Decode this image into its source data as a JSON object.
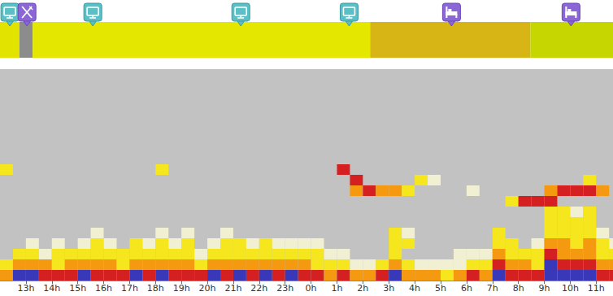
{
  "chart_data": {
    "type": "spectrogram",
    "xlim": [
      12,
      35.65
    ],
    "xticks": [
      {
        "value": 13,
        "label": "13h"
      },
      {
        "value": 14,
        "label": "14h"
      },
      {
        "value": 15,
        "label": "15h"
      },
      {
        "value": 16,
        "label": "16h"
      },
      {
        "value": 17,
        "label": "17h"
      },
      {
        "value": 18,
        "label": "18h"
      },
      {
        "value": 19,
        "label": "19h"
      },
      {
        "value": 20,
        "label": "20h"
      },
      {
        "value": 21,
        "label": "21h"
      },
      {
        "value": 22,
        "label": "22h"
      },
      {
        "value": 23,
        "label": "23h"
      },
      {
        "value": 24,
        "label": "0h"
      },
      {
        "value": 25,
        "label": "1h"
      },
      {
        "value": 26,
        "label": "2h"
      },
      {
        "value": 27,
        "label": "3h"
      },
      {
        "value": 28,
        "label": "4h"
      },
      {
        "value": 29,
        "label": "5h"
      },
      {
        "value": 30,
        "label": "6h"
      },
      {
        "value": 31,
        "label": "7h"
      },
      {
        "value": 32,
        "label": "8h"
      },
      {
        "value": 33,
        "label": "9h"
      },
      {
        "value": 34,
        "label": "10h"
      },
      {
        "value": 35,
        "label": "11h"
      }
    ],
    "ylim": [
      0,
      20
    ],
    "tick_labels": "x",
    "grid": false,
    "cell_width": 0.5,
    "cell_height": 1,
    "levels": [
      {
        "value": 1,
        "color": "#f2f0d2"
      },
      {
        "value": 2,
        "color": "#f5e61e"
      },
      {
        "value": 3,
        "color": "#f59a10"
      },
      {
        "value": 4,
        "color": "#d42020"
      },
      {
        "value": 5,
        "color": "#3838b8"
      }
    ],
    "cells": [
      [
        12.0,
        0,
        3
      ],
      [
        12.0,
        1,
        2
      ],
      [
        12.0,
        10,
        2
      ],
      [
        12.5,
        0,
        5
      ],
      [
        12.5,
        1,
        3
      ],
      [
        12.5,
        2,
        2
      ],
      [
        13.0,
        0,
        5
      ],
      [
        13.0,
        1,
        3
      ],
      [
        13.0,
        2,
        2
      ],
      [
        13.0,
        3,
        1
      ],
      [
        13.5,
        0,
        4
      ],
      [
        13.5,
        1,
        3
      ],
      [
        13.5,
        2,
        1
      ],
      [
        14.0,
        0,
        4
      ],
      [
        14.0,
        1,
        2
      ],
      [
        14.0,
        2,
        2
      ],
      [
        14.0,
        3,
        1
      ],
      [
        14.5,
        0,
        4
      ],
      [
        14.5,
        1,
        3
      ],
      [
        14.5,
        2,
        2
      ],
      [
        15.0,
        0,
        5
      ],
      [
        15.0,
        1,
        3
      ],
      [
        15.0,
        2,
        2
      ],
      [
        15.0,
        3,
        1
      ],
      [
        15.5,
        0,
        4
      ],
      [
        15.5,
        1,
        3
      ],
      [
        15.5,
        2,
        2
      ],
      [
        15.5,
        3,
        2
      ],
      [
        15.5,
        4,
        1
      ],
      [
        16.0,
        0,
        4
      ],
      [
        16.0,
        1,
        3
      ],
      [
        16.0,
        2,
        2
      ],
      [
        16.0,
        3,
        1
      ],
      [
        16.5,
        0,
        4
      ],
      [
        16.5,
        1,
        2
      ],
      [
        16.5,
        2,
        2
      ],
      [
        17.0,
        0,
        5
      ],
      [
        17.0,
        1,
        3
      ],
      [
        17.0,
        2,
        2
      ],
      [
        17.0,
        3,
        2
      ],
      [
        17.5,
        0,
        4
      ],
      [
        17.5,
        1,
        3
      ],
      [
        17.5,
        2,
        2
      ],
      [
        17.5,
        3,
        1
      ],
      [
        18.0,
        0,
        5
      ],
      [
        18.0,
        1,
        3
      ],
      [
        18.0,
        2,
        2
      ],
      [
        18.0,
        3,
        2
      ],
      [
        18.0,
        4,
        1
      ],
      [
        18.0,
        10,
        2
      ],
      [
        18.5,
        0,
        4
      ],
      [
        18.5,
        1,
        3
      ],
      [
        18.5,
        2,
        2
      ],
      [
        18.5,
        3,
        1
      ],
      [
        19.0,
        0,
        4
      ],
      [
        19.0,
        1,
        3
      ],
      [
        19.0,
        2,
        2
      ],
      [
        19.0,
        3,
        2
      ],
      [
        19.0,
        4,
        1
      ],
      [
        19.5,
        0,
        4
      ],
      [
        19.5,
        1,
        2
      ],
      [
        19.5,
        2,
        1
      ],
      [
        20.0,
        0,
        5
      ],
      [
        20.0,
        1,
        3
      ],
      [
        20.0,
        2,
        2
      ],
      [
        20.0,
        3,
        1
      ],
      [
        20.5,
        0,
        4
      ],
      [
        20.5,
        1,
        3
      ],
      [
        20.5,
        2,
        2
      ],
      [
        20.5,
        3,
        2
      ],
      [
        20.5,
        4,
        1
      ],
      [
        21.0,
        0,
        5
      ],
      [
        21.0,
        1,
        3
      ],
      [
        21.0,
        2,
        2
      ],
      [
        21.0,
        3,
        2
      ],
      [
        21.5,
        0,
        4
      ],
      [
        21.5,
        1,
        3
      ],
      [
        21.5,
        2,
        2
      ],
      [
        21.5,
        3,
        1
      ],
      [
        22.0,
        0,
        5
      ],
      [
        22.0,
        1,
        3
      ],
      [
        22.0,
        2,
        2
      ],
      [
        22.0,
        3,
        2
      ],
      [
        22.5,
        0,
        4
      ],
      [
        22.5,
        1,
        3
      ],
      [
        22.5,
        2,
        2
      ],
      [
        22.5,
        3,
        1
      ],
      [
        23.0,
        0,
        5
      ],
      [
        23.0,
        1,
        3
      ],
      [
        23.0,
        2,
        2
      ],
      [
        23.0,
        3,
        1
      ],
      [
        23.5,
        0,
        4
      ],
      [
        23.5,
        1,
        3
      ],
      [
        23.5,
        2,
        2
      ],
      [
        23.5,
        3,
        1
      ],
      [
        24.0,
        0,
        4
      ],
      [
        24.0,
        1,
        2
      ],
      [
        24.0,
        2,
        2
      ],
      [
        24.0,
        3,
        1
      ],
      [
        24.5,
        0,
        3
      ],
      [
        24.5,
        1,
        2
      ],
      [
        24.5,
        2,
        1
      ],
      [
        25.0,
        0,
        4
      ],
      [
        25.0,
        1,
        2
      ],
      [
        25.0,
        2,
        1
      ],
      [
        25.0,
        10,
        4
      ],
      [
        25.5,
        0,
        3
      ],
      [
        25.5,
        1,
        1
      ],
      [
        25.5,
        9,
        4
      ],
      [
        25.5,
        8,
        3
      ],
      [
        26.0,
        0,
        3
      ],
      [
        26.0,
        1,
        1
      ],
      [
        26.0,
        8,
        4
      ],
      [
        26.5,
        0,
        4
      ],
      [
        26.5,
        1,
        2
      ],
      [
        26.5,
        8,
        3
      ],
      [
        27.0,
        0,
        5
      ],
      [
        27.0,
        1,
        3
      ],
      [
        27.0,
        2,
        2
      ],
      [
        27.0,
        3,
        2
      ],
      [
        27.0,
        4,
        2
      ],
      [
        27.0,
        8,
        3
      ],
      [
        27.5,
        0,
        3
      ],
      [
        27.5,
        1,
        2
      ],
      [
        27.5,
        3,
        2
      ],
      [
        27.5,
        4,
        1
      ],
      [
        27.5,
        8,
        2
      ],
      [
        28.0,
        0,
        3
      ],
      [
        28.0,
        1,
        1
      ],
      [
        28.0,
        9,
        2
      ],
      [
        28.5,
        0,
        3
      ],
      [
        28.5,
        1,
        1
      ],
      [
        28.5,
        9,
        1
      ],
      [
        29.0,
        0,
        2
      ],
      [
        29.0,
        1,
        1
      ],
      [
        29.5,
        0,
        3
      ],
      [
        29.5,
        1,
        1
      ],
      [
        29.5,
        2,
        1
      ],
      [
        30.0,
        0,
        4
      ],
      [
        30.0,
        1,
        2
      ],
      [
        30.0,
        2,
        1
      ],
      [
        30.0,
        8,
        1
      ],
      [
        30.5,
        0,
        3
      ],
      [
        30.5,
        1,
        2
      ],
      [
        30.5,
        2,
        1
      ],
      [
        31.0,
        0,
        5
      ],
      [
        31.0,
        1,
        4
      ],
      [
        31.0,
        2,
        3
      ],
      [
        31.0,
        3,
        2
      ],
      [
        31.0,
        4,
        2
      ],
      [
        31.5,
        0,
        4
      ],
      [
        31.5,
        1,
        3
      ],
      [
        31.5,
        2,
        2
      ],
      [
        31.5,
        3,
        2
      ],
      [
        31.5,
        7,
        2
      ],
      [
        32.0,
        0,
        4
      ],
      [
        32.0,
        1,
        3
      ],
      [
        32.0,
        2,
        2
      ],
      [
        32.0,
        7,
        4
      ],
      [
        32.5,
        0,
        4
      ],
      [
        32.5,
        1,
        2
      ],
      [
        32.5,
        2,
        2
      ],
      [
        32.5,
        3,
        1
      ],
      [
        32.5,
        7,
        4
      ],
      [
        33.0,
        0,
        5
      ],
      [
        33.0,
        1,
        5
      ],
      [
        33.0,
        2,
        4
      ],
      [
        33.0,
        3,
        3
      ],
      [
        33.0,
        4,
        2
      ],
      [
        33.0,
        5,
        2
      ],
      [
        33.0,
        6,
        2
      ],
      [
        33.0,
        7,
        4
      ],
      [
        33.0,
        8,
        3
      ],
      [
        33.5,
        0,
        5
      ],
      [
        33.5,
        1,
        4
      ],
      [
        33.5,
        2,
        3
      ],
      [
        33.5,
        3,
        3
      ],
      [
        33.5,
        4,
        2
      ],
      [
        33.5,
        5,
        2
      ],
      [
        33.5,
        6,
        2
      ],
      [
        33.5,
        8,
        4
      ],
      [
        34.0,
        0,
        5
      ],
      [
        34.0,
        1,
        4
      ],
      [
        34.0,
        2,
        3
      ],
      [
        34.0,
        3,
        2
      ],
      [
        34.0,
        4,
        2
      ],
      [
        34.0,
        5,
        2
      ],
      [
        34.0,
        6,
        1
      ],
      [
        34.0,
        8,
        4
      ],
      [
        34.5,
        0,
        5
      ],
      [
        34.5,
        1,
        4
      ],
      [
        34.5,
        2,
        3
      ],
      [
        34.5,
        3,
        3
      ],
      [
        34.5,
        4,
        2
      ],
      [
        34.5,
        5,
        2
      ],
      [
        34.5,
        6,
        2
      ],
      [
        34.5,
        8,
        4
      ],
      [
        34.5,
        9,
        2
      ],
      [
        35.0,
        0,
        4
      ],
      [
        35.0,
        1,
        3
      ],
      [
        35.0,
        2,
        2
      ],
      [
        35.0,
        3,
        2
      ],
      [
        35.0,
        4,
        1
      ],
      [
        35.0,
        8,
        3
      ],
      [
        35.5,
        0,
        4
      ],
      [
        35.5,
        1,
        3
      ],
      [
        35.5,
        2,
        2
      ],
      [
        35.5,
        3,
        1
      ]
    ],
    "segments": [
      {
        "start": 12.0,
        "end": 12.75,
        "color": "#e2e400"
      },
      {
        "start": 12.75,
        "end": 13.26,
        "color": "#8c8c8c"
      },
      {
        "start": 13.26,
        "end": 26.28,
        "color": "#e4e800"
      },
      {
        "start": 26.28,
        "end": 32.46,
        "color": "#d6b514"
      },
      {
        "start": 32.46,
        "end": 35.65,
        "color": "#c6d600"
      }
    ],
    "events": [
      {
        "x": 12.38,
        "marker": "tv"
      },
      {
        "x": 13.04,
        "marker": "fork"
      },
      {
        "x": 15.58,
        "marker": "tv"
      },
      {
        "x": 21.29,
        "marker": "tv"
      },
      {
        "x": 25.47,
        "marker": "tv"
      },
      {
        "x": 29.42,
        "marker": "bed"
      },
      {
        "x": 34.03,
        "marker": "bed"
      }
    ]
  }
}
